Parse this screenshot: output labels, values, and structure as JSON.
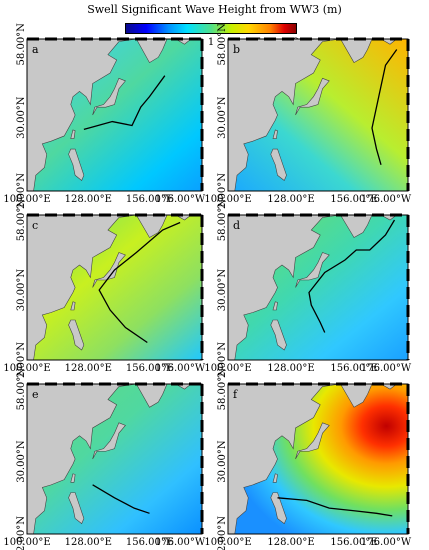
{
  "colorbar": {
    "title": "Swell Significant Wave Height from WW3 (m)",
    "ticks": [
      "0",
      "0.5",
      "1",
      "1.5",
      "2"
    ],
    "range": [
      0,
      2
    ]
  },
  "axes": {
    "lat_labels": [
      "58.00°N",
      "30.00°N",
      "2.00°N"
    ],
    "lon_labels": [
      "100.00°E",
      "128.00°E",
      "156.00°E",
      "176.00°W"
    ]
  },
  "panels": [
    {
      "label": "a",
      "track": [
        [
          126,
          25.5
        ],
        [
          139,
          28.5
        ],
        [
          148,
          27
        ],
        [
          152,
          34
        ],
        [
          156,
          38
        ],
        [
          163,
          46
        ]
      ]
    },
    {
      "label": "b",
      "track": [
        [
          168,
          12
        ],
        [
          166,
          18
        ],
        [
          164,
          26
        ],
        [
          166,
          34
        ],
        [
          168,
          42
        ],
        [
          170,
          50
        ],
        [
          175,
          56
        ]
      ]
    },
    {
      "label": "c",
      "track": [
        [
          155,
          9
        ],
        [
          145,
          15
        ],
        [
          138,
          22
        ],
        [
          133,
          30
        ],
        [
          140,
          38
        ],
        [
          150,
          45
        ],
        [
          162,
          54
        ],
        [
          170,
          57
        ]
      ]
    },
    {
      "label": "d",
      "track": [
        [
          143,
          13
        ],
        [
          141,
          17
        ],
        [
          137,
          24
        ],
        [
          136,
          29
        ],
        [
          143,
          37
        ],
        [
          152,
          42
        ],
        [
          157,
          46
        ],
        [
          163,
          46
        ],
        [
          170,
          52
        ],
        [
          174,
          58
        ]
      ]
    },
    {
      "label": "e",
      "track": [
        [
          130,
          21
        ],
        [
          140,
          16
        ],
        [
          149,
          12
        ],
        [
          156,
          10
        ]
      ]
    },
    {
      "label": "f",
      "track": [
        [
          122,
          16
        ],
        [
          135,
          15
        ],
        [
          145,
          12
        ],
        [
          156,
          11
        ],
        [
          166,
          10
        ],
        [
          173,
          9
        ]
      ]
    }
  ],
  "colors": {
    "land": "#c8c8c8",
    "track": "#000000"
  }
}
